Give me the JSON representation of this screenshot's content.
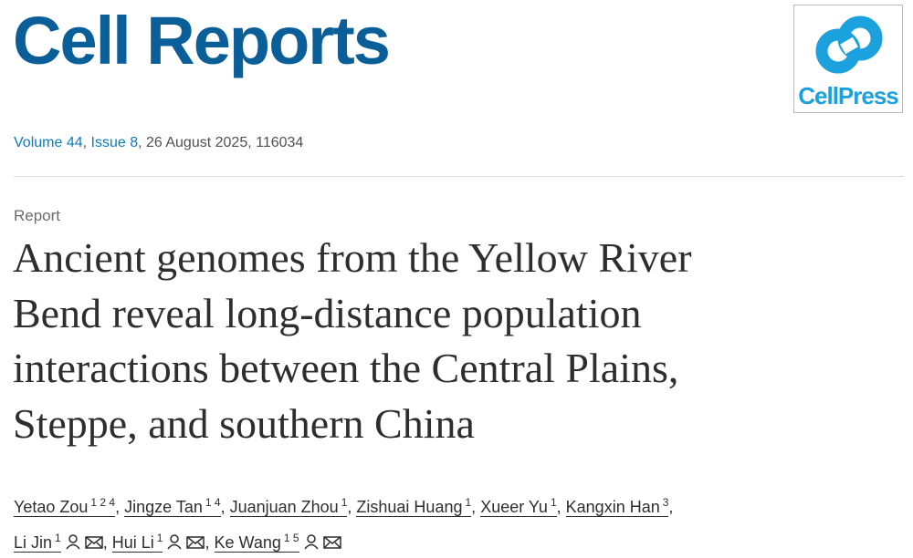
{
  "header": {
    "journal": "Cell Reports",
    "publisher_logo": "CellPress"
  },
  "citation": {
    "volume": "Volume 44",
    "issue": "Issue 8",
    "details": ", 26 August 2025, 116034"
  },
  "article": {
    "type": "Report",
    "title_lines": [
      "Ancient genomes from the Yellow River",
      "Bend reveal long-distance population",
      "interactions between the Central Plains,",
      "Steppe, and southern China"
    ],
    "separator": ",",
    "author_lines": [
      [
        {
          "name": "Yetao Zou",
          "sup": "1 2 4"
        },
        {
          "name": "Jingze Tan",
          "sup": "1 4"
        },
        {
          "name": "Juanjuan Zhou",
          "sup": "1"
        },
        {
          "name": "Zishuai Huang",
          "sup": "1"
        },
        {
          "name": "Xueer Yu",
          "sup": "1"
        },
        {
          "name": "Kangxin Han",
          "sup": "3"
        }
      ],
      [
        {
          "name": "Li Jin",
          "sup": "1",
          "corresponding": true
        },
        {
          "name": "Hui Li",
          "sup": "1",
          "corresponding": true
        },
        {
          "name": "Ke Wang",
          "sup": "1 5",
          "corresponding": true
        }
      ]
    ]
  }
}
